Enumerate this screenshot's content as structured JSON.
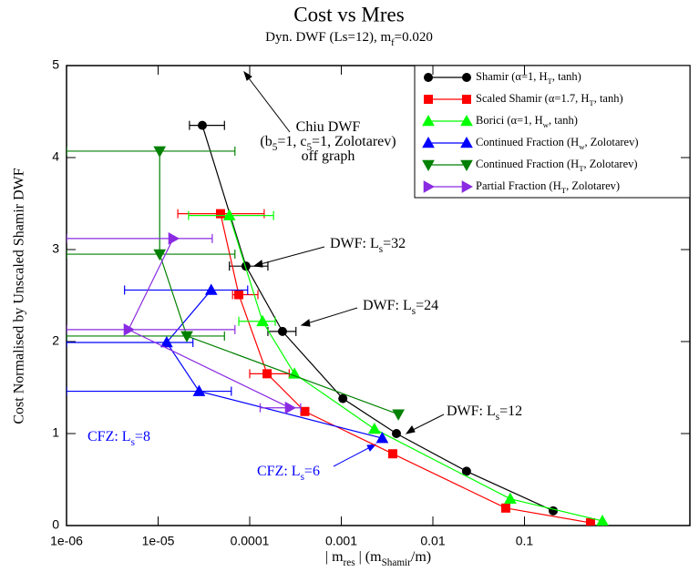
{
  "chart_data": {
    "type": "scatter",
    "title": "Cost vs Mres",
    "subtitle": [
      "Dyn. DWF (Ls=12), m",
      "f",
      "=0.020"
    ],
    "x_label": [
      "| m",
      "res",
      " | (m",
      "Shamir",
      "/m)"
    ],
    "y_label": "Cost Normalised by Unscaled Shamir DWF",
    "log_x": true,
    "xlim": [
      1e-06,
      6.4
    ],
    "ylim": [
      0,
      5
    ],
    "xticks": [
      {
        "value": 1e-06,
        "label": "1e-06"
      },
      {
        "value": 1e-05,
        "label": "1e-05"
      },
      0.0001,
      0.001,
      0.01,
      0.1
    ],
    "yticks": [
      0,
      1,
      2,
      3,
      4,
      5
    ],
    "legend": "top-right",
    "series": [
      {
        "name": [
          "Shamir (α=1, H",
          "T",
          ", tanh)"
        ],
        "color": "#000000",
        "marker": "circle",
        "x": [
          3.04e-05,
          9.1e-05,
          0.000228,
          0.00104,
          0.004,
          0.0233,
          0.206
        ],
        "values": [
          4.35,
          2.82,
          2.11,
          1.38,
          1.0,
          0.59,
          0.16
        ],
        "xmin": [
          2.2e-05,
          6e-05,
          0.000158,
          null,
          null,
          null,
          null
        ],
        "xmax": [
          5.3e-05,
          0.000158,
          0.00032,
          null,
          null,
          null,
          null
        ]
      },
      {
        "name": [
          "Scaled Shamir (α=1.7, H",
          "T",
          ", tanh)"
        ],
        "color": "#ff0000",
        "marker": "square",
        "x": [
          4.8e-05,
          7.6e-05,
          0.000155,
          0.0004,
          0.00365,
          0.0625,
          0.526
        ],
        "values": [
          3.39,
          2.51,
          1.65,
          1.24,
          0.78,
          0.19,
          0.03
        ],
        "xmin": [
          1.64e-05,
          6.5e-05,
          0.0001,
          null,
          null,
          null,
          null
        ],
        "xmax": [
          0.000144,
          0.000123,
          0.00027,
          null,
          null,
          null,
          null
        ]
      },
      {
        "name": [
          "Borici (α=1, H",
          "w",
          ", tanh)"
        ],
        "color": "#00ff00",
        "marker": "triangle-up",
        "x": [
          6e-05,
          0.000138,
          0.000308,
          0.0023,
          0.07,
          0.71
        ],
        "values": [
          3.37,
          2.22,
          1.65,
          1.05,
          0.29,
          0.05
        ],
        "xmin": [
          2.15e-05,
          7.6e-05,
          null,
          null,
          null,
          null
        ],
        "xmax": [
          0.000182,
          0.00019,
          null,
          null,
          null,
          null
        ]
      },
      {
        "name": [
          "Continued Fraction (H",
          "w",
          ", Zolotarev)"
        ],
        "color": "#0000ff",
        "marker": "triangle-up",
        "x": [
          3.8e-05,
          1.24e-05,
          2.8e-05,
          0.0028
        ],
        "values": [
          2.56,
          1.99,
          1.46,
          0.95
        ],
        "xmin": [
          4.3e-06,
          1e-06,
          1e-06,
          null
        ],
        "xmax": [
          9.5e-05,
          2.4e-05,
          6.3e-05,
          null
        ]
      },
      {
        "name": [
          "Continued Fraction (H",
          "T",
          ", Zolotarev)"
        ],
        "color": "#008000",
        "marker": "triangle-down",
        "x": [
          1.04e-05,
          1.04e-05,
          2.06e-05,
          0.0042
        ],
        "values": [
          4.07,
          2.95,
          2.06,
          1.21
        ],
        "xmin": [
          1e-06,
          1e-06,
          1e-06,
          null
        ],
        "xmax": [
          6.9e-05,
          6.9e-05,
          5.3e-05,
          null
        ]
      },
      {
        "name": [
          "Partial Fraction (H",
          "T",
          ", Zolotarev)"
        ],
        "color": "#8a2be2",
        "marker": "triangle-right",
        "x": [
          1.46e-05,
          4.75e-06,
          0.000274
        ],
        "values": [
          3.12,
          2.13,
          1.28
        ],
        "xmin": [
          1e-06,
          1e-06,
          0.00013
        ],
        "xmax": [
          3.9e-05,
          6.9e-05,
          0.00036
        ]
      }
    ],
    "annotations": [
      {
        "text": [
          "Chiu DWF"
        ],
        "color": "#000000"
      },
      {
        "text": [
          "(b",
          "5",
          "=1, c",
          "5",
          "=1, Zolotarev)"
        ],
        "color": "#000000"
      },
      {
        "text": [
          "off graph"
        ],
        "color": "#000000"
      },
      {
        "text": [
          "DWF: L",
          "s",
          "=32"
        ],
        "color": "#000000"
      },
      {
        "text": [
          "DWF: L",
          "s",
          "=24"
        ],
        "color": "#000000"
      },
      {
        "text": [
          "DWF: L",
          "s",
          "=12"
        ],
        "color": "#000000"
      },
      {
        "text": [
          "CFZ: L",
          "s",
          "=8"
        ],
        "color": "#0000ff"
      },
      {
        "text": [
          "CFZ: L",
          "s",
          "=6"
        ],
        "color": "#0000ff"
      }
    ]
  }
}
